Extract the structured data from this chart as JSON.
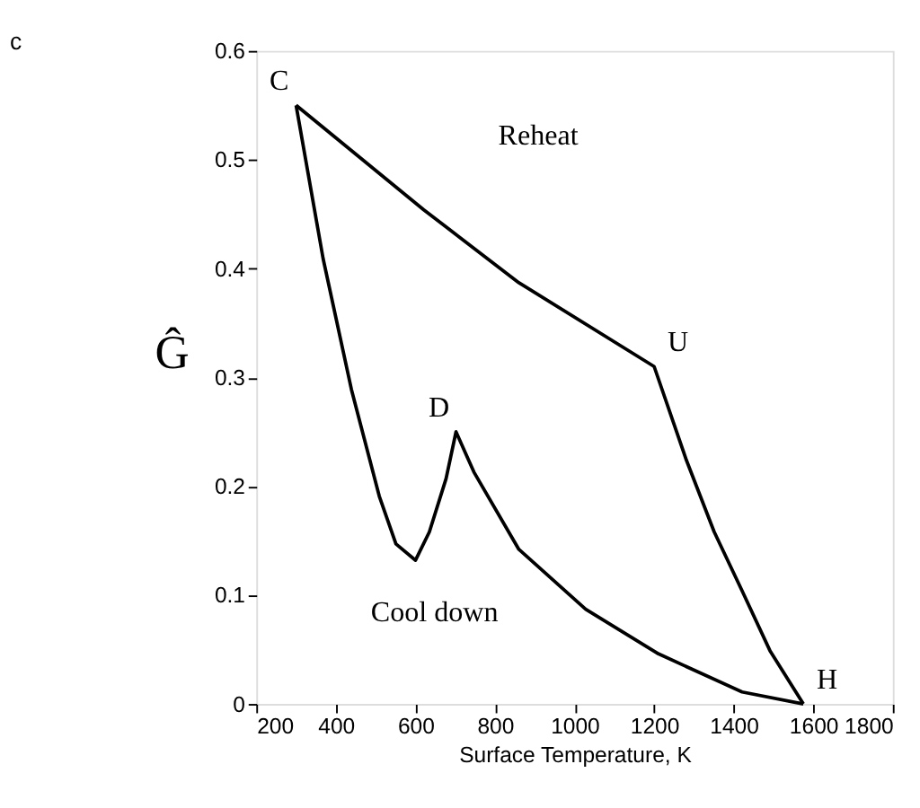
{
  "chart_data": {
    "type": "line",
    "title": "c",
    "xlabel": "Surface Temperature, K",
    "ylabel": "Ĝ",
    "series": [
      {
        "color": "#000000",
        "x": [
          300,
          621,
          860,
          1200,
          1281,
          1351,
          1421,
          1491,
          1575
        ],
        "values": [
          0.55,
          0.454,
          0.387,
          0.31,
          0.224,
          0.158,
          0.104,
          0.049,
          0
        ]
      },
      {
        "color": "#000000",
        "x": [
          1575,
          1421,
          1211,
          1028,
          860,
          747,
          702,
          677,
          635,
          600,
          551,
          509,
          439,
          368,
          300
        ],
        "values": [
          0,
          0.011,
          0.046,
          0.087,
          0.142,
          0.213,
          0.25,
          0.207,
          0.158,
          0.132,
          0.147,
          0.191,
          0.289,
          0.409,
          0.55
        ]
      }
    ],
    "xlim": [
      200,
      1800
    ],
    "xticks": [
      200,
      400,
      600,
      800,
      1000,
      1200,
      1400,
      1600,
      1800
    ],
    "ylim": [
      0,
      0.6
    ],
    "yticks": [
      0,
      0.1,
      0.2,
      0.3,
      0.4,
      0.5,
      0.6
    ],
    "grid": false,
    "marker": "none",
    "line_style": "solid",
    "annotations": [
      {
        "text": "C",
        "x": 300,
        "y": 0.55
      },
      {
        "text": "U",
        "x": 1200,
        "y": 0.31
      },
      {
        "text": "D",
        "x": 702,
        "y": 0.25
      },
      {
        "text": "H",
        "x": 1575,
        "y": 0
      },
      "Reheat",
      "Cool down"
    ]
  }
}
